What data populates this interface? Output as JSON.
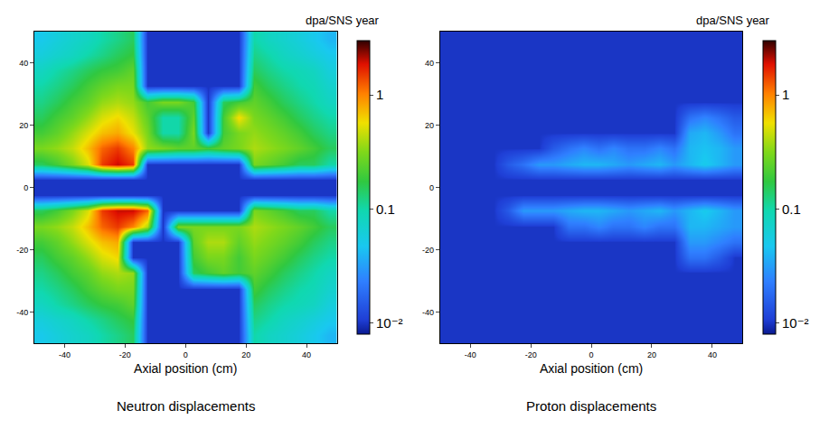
{
  "chart_data": [
    {
      "type": "heatmap",
      "title": "Neutron displacements",
      "x_label": "Axial position (cm)",
      "colorbar_title": "dpa/SNS year",
      "log": true,
      "xlim": [
        -50,
        50
      ],
      "ylim": [
        -50,
        50
      ],
      "xticks": [
        -40,
        -20,
        0,
        20,
        40
      ],
      "yticks": [
        -40,
        -20,
        0,
        20,
        40
      ],
      "colorbar_range": [
        0.008,
        3
      ],
      "colorbar_ticks": [
        1,
        0.1,
        {
          "value": 0.01,
          "label": "10⁻²"
        }
      ],
      "x": [
        -47.5,
        -42.5,
        -37.5,
        -32.5,
        -27.5,
        -22.5,
        -17.5,
        -12.5,
        -7.5,
        -2.5,
        2.5,
        7.5,
        12.5,
        17.5,
        22.5,
        27.5,
        32.5,
        37.5,
        42.5,
        47.5
      ],
      "y": [
        -47.5,
        -42.5,
        -37.5,
        -32.5,
        -27.5,
        -22.5,
        -17.5,
        -12.5,
        -7.5,
        -2.5,
        2.5,
        7.5,
        12.5,
        17.5,
        22.5,
        27.5,
        32.5,
        37.5,
        42.5,
        47.5
      ],
      "cells": [
        [
          0.05,
          0.06,
          0.07,
          0.08,
          0.1,
          0.12,
          0.15,
          0.01,
          0.01,
          0.01,
          0.01,
          0.01,
          0.01,
          0.01,
          0.1,
          0.08,
          0.07,
          0.06,
          0.05,
          0.04
        ],
        [
          0.06,
          0.07,
          0.08,
          0.1,
          0.12,
          0.15,
          0.18,
          0.01,
          0.01,
          0.01,
          0.01,
          0.01,
          0.01,
          0.01,
          0.12,
          0.1,
          0.08,
          0.07,
          0.06,
          0.05
        ],
        [
          0.08,
          0.1,
          0.12,
          0.15,
          0.18,
          0.2,
          0.25,
          0.01,
          0.01,
          0.01,
          0.01,
          0.01,
          0.01,
          0.01,
          0.15,
          0.12,
          0.1,
          0.09,
          0.08,
          0.06
        ],
        [
          0.1,
          0.12,
          0.15,
          0.2,
          0.25,
          0.3,
          0.3,
          0.01,
          0.01,
          0.01,
          0.01,
          0.01,
          0.01,
          0.01,
          0.2,
          0.15,
          0.12,
          0.1,
          0.09,
          0.07
        ],
        [
          0.12,
          0.15,
          0.2,
          0.25,
          0.35,
          0.4,
          0.35,
          0.01,
          0.01,
          0.01,
          0.15,
          0.2,
          0.25,
          0.2,
          0.25,
          0.2,
          0.15,
          0.12,
          0.1,
          0.08
        ],
        [
          0.15,
          0.2,
          0.25,
          0.35,
          0.5,
          0.6,
          0.01,
          0.01,
          0.01,
          0.01,
          0.2,
          0.3,
          0.3,
          0.2,
          0.3,
          0.25,
          0.2,
          0.15,
          0.12,
          0.1
        ],
        [
          0.2,
          0.25,
          0.35,
          0.5,
          0.7,
          0.8,
          0.01,
          0.01,
          0.01,
          0.01,
          0.25,
          0.4,
          0.4,
          0.25,
          0.35,
          0.3,
          0.25,
          0.2,
          0.15,
          0.12
        ],
        [
          0.3,
          0.35,
          0.45,
          0.7,
          1.2,
          1.5,
          1.0,
          0.4,
          0.01,
          0.3,
          0.3,
          0.3,
          0.3,
          0.3,
          0.4,
          0.35,
          0.3,
          0.25,
          0.2,
          0.15
        ],
        [
          0.15,
          0.2,
          0.3,
          0.5,
          1.5,
          2.0,
          2.0,
          1.2,
          0.01,
          0.01,
          0.01,
          0.01,
          0.01,
          0.01,
          0.3,
          0.25,
          0.2,
          0.15,
          0.15,
          0.1
        ],
        [
          0.01,
          0.01,
          0.01,
          0.01,
          0.01,
          0.01,
          0.01,
          0.01,
          0.01,
          0.01,
          0.01,
          0.01,
          0.01,
          0.01,
          0.01,
          0.01,
          0.01,
          0.01,
          0.01,
          0.01
        ],
        [
          0.01,
          0.01,
          0.01,
          0.01,
          0.01,
          0.01,
          0.01,
          0.01,
          0.01,
          0.01,
          0.01,
          0.01,
          0.01,
          0.01,
          0.01,
          0.01,
          0.01,
          0.01,
          0.01,
          0.01
        ],
        [
          0.15,
          0.2,
          0.3,
          0.5,
          1.5,
          2.0,
          1.5,
          0.01,
          0.01,
          0.01,
          0.01,
          0.01,
          0.01,
          0.01,
          0.3,
          0.25,
          0.2,
          0.15,
          0.15,
          0.1
        ],
        [
          0.3,
          0.35,
          0.45,
          0.7,
          1.2,
          1.5,
          1.0,
          0.35,
          0.3,
          0.25,
          0.25,
          0.2,
          0.25,
          0.3,
          0.4,
          0.35,
          0.3,
          0.25,
          0.2,
          0.15
        ],
        [
          0.2,
          0.25,
          0.35,
          0.5,
          0.7,
          0.8,
          0.55,
          0.3,
          0.1,
          0.1,
          0.3,
          0.01,
          0.2,
          0.3,
          0.35,
          0.3,
          0.25,
          0.2,
          0.15,
          0.12
        ],
        [
          0.15,
          0.2,
          0.25,
          0.35,
          0.5,
          0.6,
          0.45,
          0.25,
          0.1,
          0.1,
          0.25,
          0.01,
          0.2,
          0.6,
          0.3,
          0.25,
          0.2,
          0.15,
          0.12,
          0.1
        ],
        [
          0.12,
          0.15,
          0.2,
          0.25,
          0.35,
          0.4,
          0.35,
          0.2,
          0.3,
          0.3,
          0.2,
          0.01,
          0.15,
          0.2,
          0.25,
          0.2,
          0.15,
          0.12,
          0.1,
          0.08
        ],
        [
          0.1,
          0.12,
          0.15,
          0.2,
          0.25,
          0.3,
          0.3,
          0.01,
          0.01,
          0.01,
          0.01,
          0.01,
          0.01,
          0.01,
          0.2,
          0.15,
          0.12,
          0.1,
          0.09,
          0.07
        ],
        [
          0.08,
          0.1,
          0.12,
          0.15,
          0.18,
          0.2,
          0.25,
          0.01,
          0.01,
          0.01,
          0.01,
          0.01,
          0.01,
          0.01,
          0.15,
          0.12,
          0.1,
          0.09,
          0.08,
          0.06
        ],
        [
          0.06,
          0.07,
          0.08,
          0.1,
          0.12,
          0.15,
          0.18,
          0.01,
          0.01,
          0.01,
          0.01,
          0.01,
          0.01,
          0.01,
          0.12,
          0.1,
          0.08,
          0.07,
          0.06,
          0.05
        ],
        [
          0.05,
          0.06,
          0.07,
          0.08,
          0.1,
          0.12,
          0.15,
          0.01,
          0.01,
          0.01,
          0.01,
          0.01,
          0.01,
          0.01,
          0.1,
          0.08,
          0.07,
          0.06,
          0.05,
          0.04
        ]
      ]
    },
    {
      "type": "heatmap",
      "title": "Proton displacements",
      "x_label": "Axial position (cm)",
      "colorbar_title": "dpa/SNS year",
      "log": true,
      "xlim": [
        -50,
        50
      ],
      "ylim": [
        -50,
        50
      ],
      "xticks": [
        -40,
        -20,
        0,
        20,
        40
      ],
      "yticks": [
        -40,
        -20,
        0,
        20,
        40
      ],
      "colorbar_range": [
        0.008,
        3
      ],
      "colorbar_ticks": [
        1,
        0.1,
        {
          "value": 0.01,
          "label": "10⁻²"
        }
      ],
      "x": [
        -47.5,
        -42.5,
        -37.5,
        -32.5,
        -27.5,
        -22.5,
        -17.5,
        -12.5,
        -7.5,
        -2.5,
        2.5,
        7.5,
        12.5,
        17.5,
        22.5,
        27.5,
        32.5,
        37.5,
        42.5,
        47.5
      ],
      "y": [
        -47.5,
        -42.5,
        -37.5,
        -32.5,
        -27.5,
        -22.5,
        -17.5,
        -12.5,
        -7.5,
        -2.5,
        2.5,
        7.5,
        12.5,
        17.5,
        22.5,
        27.5,
        32.5,
        37.5,
        42.5,
        47.5
      ],
      "cells": [
        [
          0.01,
          0.01,
          0.01,
          0.01,
          0.01,
          0.01,
          0.01,
          0.01,
          0.01,
          0.01,
          0.01,
          0.01,
          0.01,
          0.01,
          0.01,
          0.01,
          0.01,
          0.01,
          0.01,
          0.01
        ],
        [
          0.01,
          0.01,
          0.01,
          0.01,
          0.01,
          0.01,
          0.01,
          0.01,
          0.01,
          0.01,
          0.01,
          0.01,
          0.01,
          0.01,
          0.01,
          0.01,
          0.01,
          0.01,
          0.01,
          0.01
        ],
        [
          0.01,
          0.01,
          0.01,
          0.01,
          0.01,
          0.01,
          0.01,
          0.01,
          0.01,
          0.01,
          0.01,
          0.01,
          0.01,
          0.01,
          0.01,
          0.01,
          0.01,
          0.01,
          0.01,
          0.01
        ],
        [
          0.01,
          0.01,
          0.01,
          0.01,
          0.01,
          0.01,
          0.01,
          0.01,
          0.01,
          0.01,
          0.01,
          0.01,
          0.01,
          0.01,
          0.01,
          0.01,
          0.01,
          0.01,
          0.01,
          0.01
        ],
        [
          0.01,
          0.01,
          0.01,
          0.01,
          0.01,
          0.01,
          0.01,
          0.01,
          0.01,
          0.01,
          0.01,
          0.01,
          0.01,
          0.01,
          0.01,
          0.01,
          0.01,
          0.01,
          0.01,
          0.01
        ],
        [
          0.01,
          0.01,
          0.01,
          0.01,
          0.01,
          0.01,
          0.01,
          0.01,
          0.01,
          0.01,
          0.01,
          0.01,
          0.01,
          0.01,
          0.01,
          0.01,
          0.02,
          0.02,
          0.015,
          0.01
        ],
        [
          0.01,
          0.01,
          0.01,
          0.01,
          0.01,
          0.01,
          0.01,
          0.01,
          0.01,
          0.01,
          0.01,
          0.01,
          0.01,
          0.01,
          0.01,
          0.01,
          0.03,
          0.03,
          0.025,
          0.02
        ],
        [
          0.01,
          0.01,
          0.01,
          0.01,
          0.01,
          0.01,
          0.01,
          0.01,
          0.02,
          0.02,
          0.025,
          0.02,
          0.02,
          0.025,
          0.02,
          0.02,
          0.04,
          0.04,
          0.035,
          0.03
        ],
        [
          0.01,
          0.01,
          0.01,
          0.01,
          0.015,
          0.03,
          0.03,
          0.03,
          0.035,
          0.04,
          0.04,
          0.035,
          0.03,
          0.035,
          0.04,
          0.03,
          0.04,
          0.05,
          0.04,
          0.03
        ],
        [
          0.01,
          0.01,
          0.01,
          0.01,
          0.01,
          0.01,
          0.01,
          0.01,
          0.01,
          0.01,
          0.01,
          0.01,
          0.01,
          0.01,
          0.01,
          0.01,
          0.01,
          0.01,
          0.01,
          0.01
        ],
        [
          0.01,
          0.01,
          0.01,
          0.01,
          0.01,
          0.01,
          0.01,
          0.01,
          0.01,
          0.01,
          0.01,
          0.01,
          0.01,
          0.01,
          0.01,
          0.01,
          0.01,
          0.01,
          0.01,
          0.01
        ],
        [
          0.01,
          0.01,
          0.01,
          0.01,
          0.015,
          0.02,
          0.03,
          0.03,
          0.035,
          0.04,
          0.04,
          0.035,
          0.03,
          0.035,
          0.04,
          0.03,
          0.04,
          0.05,
          0.04,
          0.03
        ],
        [
          0.01,
          0.01,
          0.01,
          0.01,
          0.01,
          0.01,
          0.01,
          0.015,
          0.02,
          0.025,
          0.02,
          0.025,
          0.02,
          0.02,
          0.025,
          0.02,
          0.04,
          0.045,
          0.04,
          0.03
        ],
        [
          0.01,
          0.01,
          0.01,
          0.01,
          0.01,
          0.01,
          0.01,
          0.01,
          0.01,
          0.01,
          0.01,
          0.01,
          0.01,
          0.01,
          0.01,
          0.01,
          0.035,
          0.04,
          0.03,
          0.02
        ],
        [
          0.01,
          0.01,
          0.01,
          0.01,
          0.01,
          0.01,
          0.01,
          0.01,
          0.01,
          0.01,
          0.01,
          0.01,
          0.01,
          0.01,
          0.01,
          0.01,
          0.02,
          0.025,
          0.02,
          0.015
        ],
        [
          0.01,
          0.01,
          0.01,
          0.01,
          0.01,
          0.01,
          0.01,
          0.01,
          0.01,
          0.01,
          0.01,
          0.01,
          0.01,
          0.01,
          0.01,
          0.01,
          0.01,
          0.01,
          0.01,
          0.01
        ],
        [
          0.01,
          0.01,
          0.01,
          0.01,
          0.01,
          0.01,
          0.01,
          0.01,
          0.01,
          0.01,
          0.01,
          0.01,
          0.01,
          0.01,
          0.01,
          0.01,
          0.01,
          0.01,
          0.01,
          0.01
        ],
        [
          0.01,
          0.01,
          0.01,
          0.01,
          0.01,
          0.01,
          0.01,
          0.01,
          0.01,
          0.01,
          0.01,
          0.01,
          0.01,
          0.01,
          0.01,
          0.01,
          0.01,
          0.01,
          0.01,
          0.01
        ],
        [
          0.01,
          0.01,
          0.01,
          0.01,
          0.01,
          0.01,
          0.01,
          0.01,
          0.01,
          0.01,
          0.01,
          0.01,
          0.01,
          0.01,
          0.01,
          0.01,
          0.01,
          0.01,
          0.01,
          0.01
        ],
        [
          0.01,
          0.01,
          0.01,
          0.01,
          0.01,
          0.01,
          0.01,
          0.01,
          0.01,
          0.01,
          0.01,
          0.01,
          0.01,
          0.01,
          0.01,
          0.01,
          0.01,
          0.01,
          0.01,
          0.01
        ]
      ]
    }
  ]
}
